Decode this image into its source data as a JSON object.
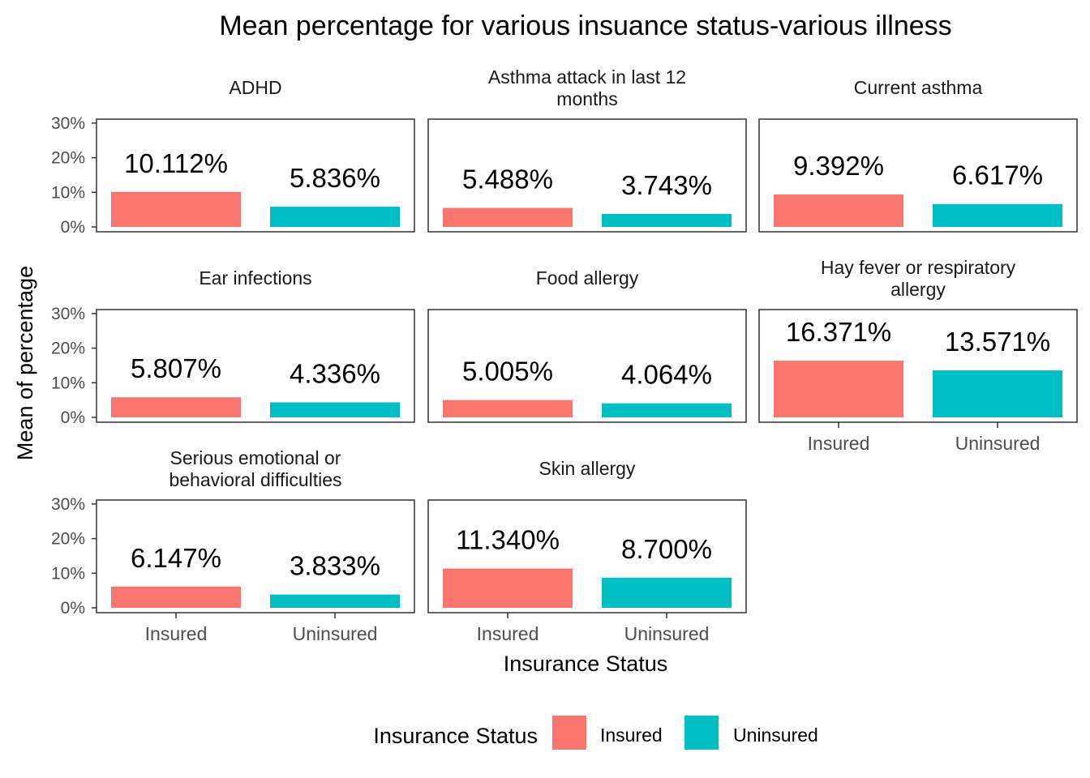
{
  "chart_data": {
    "type": "bar",
    "title": "Mean percentage for various insuance status-various illness",
    "xlabel": "Insurance Status",
    "ylabel": "Mean of percentage",
    "categories": [
      "Insured",
      "Uninsured"
    ],
    "y_ticks": [
      "0%",
      "10%",
      "20%",
      "30%"
    ],
    "ylim": [
      0,
      30
    ],
    "colors": {
      "Insured": "#F8766D",
      "Uninsured": "#00BFC4"
    },
    "legend": {
      "title": "Insurance Status",
      "entries": [
        "Insured",
        "Uninsured"
      ],
      "placement": "bottom"
    },
    "grid": false,
    "panels": [
      {
        "name": "ADHD",
        "values": [
          10.112,
          5.836
        ],
        "labels": [
          "10.112%",
          "5.836%"
        ]
      },
      {
        "name": "Asthma attack in last 12\nmonths",
        "values": [
          5.488,
          3.743
        ],
        "labels": [
          "5.488%",
          "3.743%"
        ]
      },
      {
        "name": "Current asthma",
        "values": [
          9.392,
          6.617
        ],
        "labels": [
          "9.392%",
          "6.617%"
        ]
      },
      {
        "name": "Ear infections",
        "values": [
          5.807,
          4.336
        ],
        "labels": [
          "5.807%",
          "4.336%"
        ]
      },
      {
        "name": "Food allergy",
        "values": [
          5.005,
          4.064
        ],
        "labels": [
          "5.005%",
          "4.064%"
        ]
      },
      {
        "name": "Hay fever or respiratory\nallergy",
        "values": [
          16.371,
          13.571
        ],
        "labels": [
          "16.371%",
          "13.571%"
        ]
      },
      {
        "name": "Serious emotional or\nbehavioral difficulties",
        "values": [
          6.147,
          3.833
        ],
        "labels": [
          "6.147%",
          "3.833%"
        ]
      },
      {
        "name": "Skin allergy",
        "values": [
          11.34,
          8.7
        ],
        "labels": [
          "11.340%",
          "8.700%"
        ]
      }
    ]
  }
}
